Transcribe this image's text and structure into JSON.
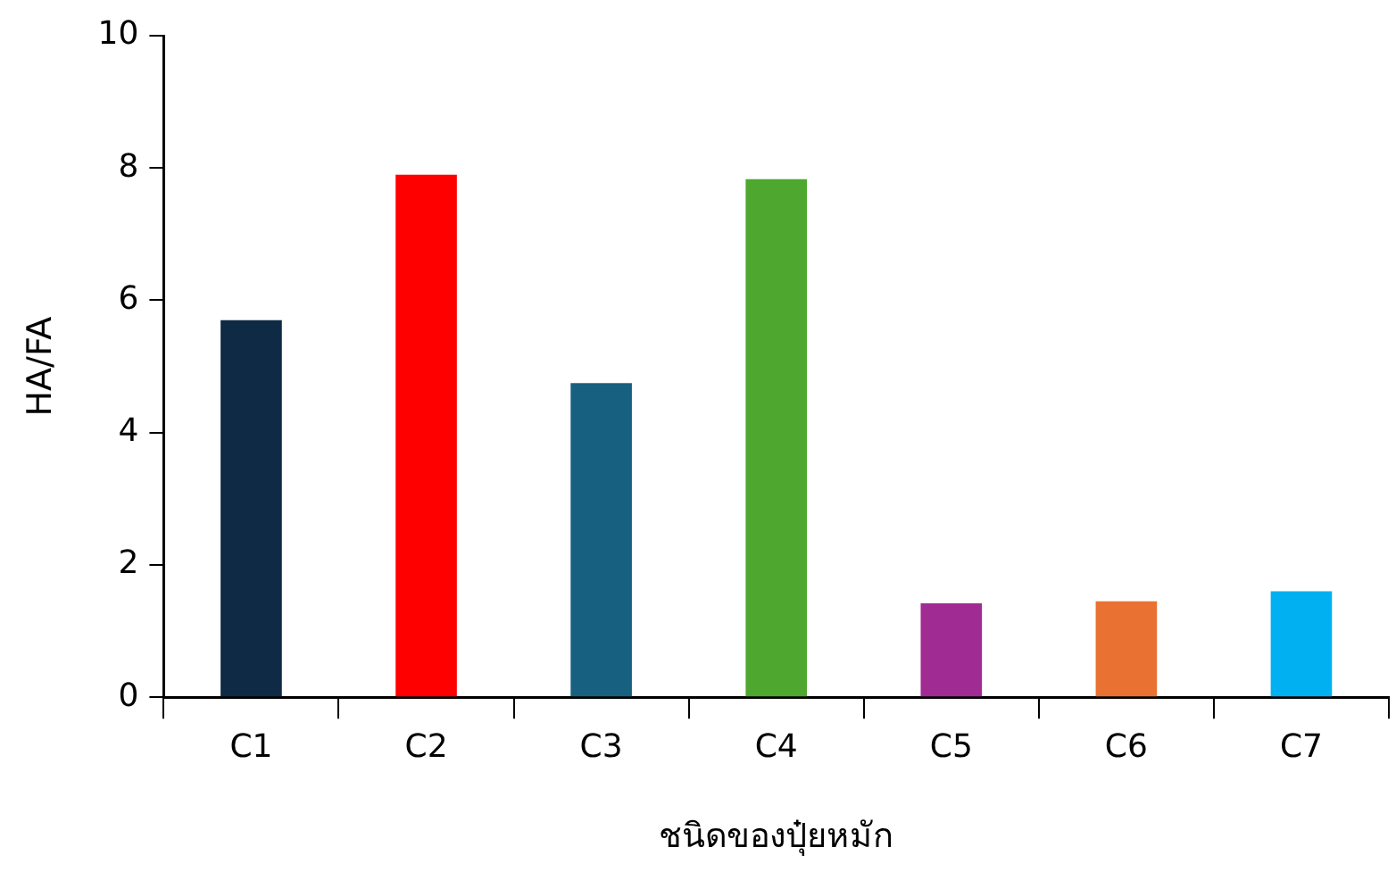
{
  "chart_data": {
    "type": "bar",
    "xlabel": "ชนิดของปุ๋ยหมัก",
    "ylabel": "HA/FA",
    "categories": [
      "C1",
      "C2",
      "C3",
      "C4",
      "C5",
      "C6",
      "C7"
    ],
    "values": [
      5.7,
      7.9,
      4.75,
      7.83,
      1.42,
      1.45,
      1.6
    ],
    "colors": [
      "#0f2a44",
      "#ff0000",
      "#17607f",
      "#4ea72e",
      "#a02b93",
      "#e97132",
      "#00b0f0"
    ],
    "ylim": [
      0,
      10
    ],
    "yticks": [
      0,
      2,
      4,
      6,
      8,
      10
    ],
    "grid": false,
    "legend": false
  }
}
